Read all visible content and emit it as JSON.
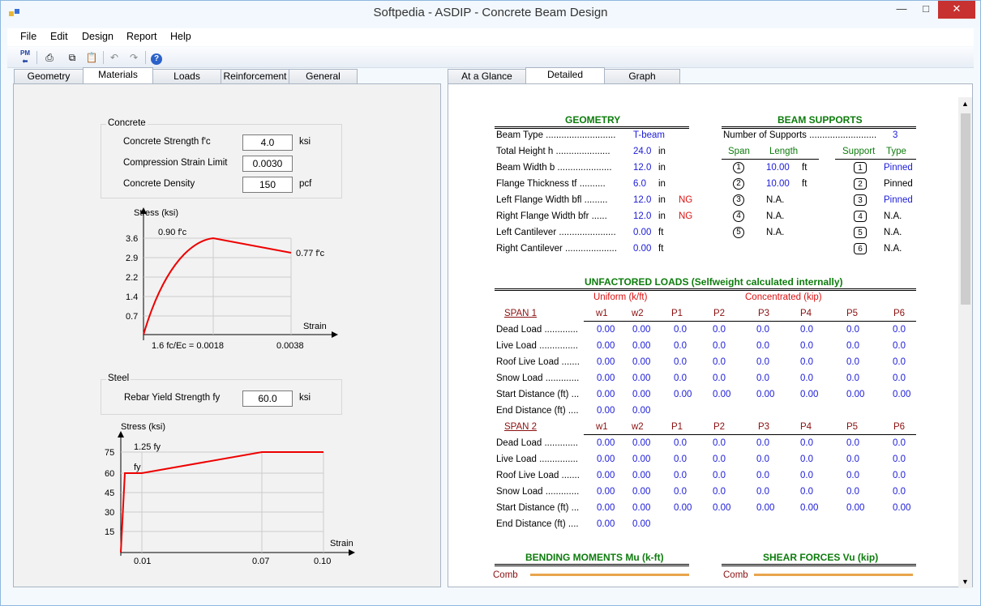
{
  "app": {
    "title": "Softpedia - ASDIP - Concrete Beam Design"
  },
  "menu": [
    "File",
    "Edit",
    "Design",
    "Report",
    "Help"
  ],
  "toolbar": {
    "icons": [
      "pm-back-icon",
      "print-icon",
      "copy-icon",
      "paste-icon",
      "undo-icon",
      "redo-icon",
      "help-icon"
    ],
    "pm_label": "PM"
  },
  "left_tabs": [
    "Geometry",
    "Materials",
    "Loads",
    "Reinforcement",
    "General"
  ],
  "right_tabs": [
    "At a Glance",
    "Detailed",
    "Graph"
  ],
  "concrete": {
    "title": "Concrete",
    "fields": [
      {
        "label": "Concrete Strength  f'c",
        "value": "4.0",
        "unit": "ksi"
      },
      {
        "label": "Compression Strain Limit",
        "value": "0.0030",
        "unit": ""
      },
      {
        "label": "Concrete Density",
        "value": "150",
        "unit": "pcf"
      }
    ],
    "chart": {
      "ylabel": "Stress (ksi)",
      "xlabel": "Strain",
      "yticks": [
        "3.6",
        "2.9",
        "2.2",
        "1.4",
        "0.7"
      ],
      "xlabels": [
        "1.6 fc/Ec =  0.0018",
        "0.0038"
      ],
      "peak_label": "0.90 f'c",
      "end_label": "0.77 f'c"
    }
  },
  "steel": {
    "title": "Steel",
    "field": {
      "label": "Rebar Yield Strength  fy",
      "value": "60.0",
      "unit": "ksi"
    },
    "chart": {
      "ylabel": "Stress (ksi)",
      "xlabel": "Strain",
      "yticks": [
        "75",
        "60",
        "45",
        "30",
        "15"
      ],
      "xticks": [
        "0.01",
        "0.07",
        "0.10"
      ],
      "top_label": "1.25 fy",
      "fy_label": "fy"
    }
  },
  "report": {
    "geometry": {
      "title": "GEOMETRY",
      "rows": [
        {
          "label": "Beam Type  ...........................",
          "value": "T-beam",
          "unit": "",
          "flag": ""
        },
        {
          "label": "Total Height  h  .....................",
          "value": "24.0",
          "unit": "in",
          "flag": ""
        },
        {
          "label": "Beam Width  b  .....................",
          "value": "12.0",
          "unit": "in",
          "flag": ""
        },
        {
          "label": "Flange Thickness  tf  ..........",
          "value": "6.0",
          "unit": "in",
          "flag": ""
        },
        {
          "label": "Left Flange Width  bfl  .........",
          "value": "12.0",
          "unit": "in",
          "flag": "NG"
        },
        {
          "label": "Right Flange Width  bfr  ......",
          "value": "12.0",
          "unit": "in",
          "flag": "NG"
        },
        {
          "label": "Left Cantilever  ......................",
          "value": "0.00",
          "unit": "ft",
          "flag": ""
        },
        {
          "label": "Right Cantilever  ....................",
          "value": "0.00",
          "unit": "ft",
          "flag": ""
        }
      ]
    },
    "supports": {
      "title": "BEAM SUPPORTS",
      "count_label": "Number of Supports  ..........................",
      "count": "3",
      "headers": [
        "Span",
        "Length",
        "Support",
        "Type"
      ],
      "spans": [
        {
          "n": "1",
          "length": "10.00",
          "unit": "ft"
        },
        {
          "n": "2",
          "length": "10.00",
          "unit": "ft"
        },
        {
          "n": "3",
          "length": "N.A.",
          "unit": ""
        },
        {
          "n": "4",
          "length": "N.A.",
          "unit": ""
        },
        {
          "n": "5",
          "length": "N.A.",
          "unit": ""
        }
      ],
      "supports": [
        {
          "n": "1",
          "type": "Pinned"
        },
        {
          "n": "2",
          "type": "Pinned"
        },
        {
          "n": "3",
          "type": "Pinned"
        },
        {
          "n": "4",
          "type": "N.A."
        },
        {
          "n": "5",
          "type": "N.A."
        },
        {
          "n": "6",
          "type": "N.A."
        }
      ]
    },
    "loads": {
      "title": "UNFACTORED LOADS (Selfweight calculated internally)",
      "uniform_label": "Uniform (k/ft)",
      "conc_label": "Concentrated (kip)",
      "columns": [
        "w1",
        "w2",
        "P1",
        "P2",
        "P3",
        "P4",
        "P5",
        "P6"
      ],
      "spans": [
        {
          "name": "SPAN 1",
          "rows": [
            {
              "label": "Dead Load  .............",
              "values": [
                "0.00",
                "0.00",
                "0.0",
                "0.0",
                "0.0",
                "0.0",
                "0.0",
                "0.0"
              ]
            },
            {
              "label": "Live Load  ...............",
              "values": [
                "0.00",
                "0.00",
                "0.0",
                "0.0",
                "0.0",
                "0.0",
                "0.0",
                "0.0"
              ]
            },
            {
              "label": "Roof Live Load  .......",
              "values": [
                "0.00",
                "0.00",
                "0.0",
                "0.0",
                "0.0",
                "0.0",
                "0.0",
                "0.0"
              ]
            },
            {
              "label": "Snow Load  .............",
              "values": [
                "0.00",
                "0.00",
                "0.0",
                "0.0",
                "0.0",
                "0.0",
                "0.0",
                "0.0"
              ]
            },
            {
              "label": "Start Distance (ft)  ...",
              "values": [
                "0.00",
                "0.00",
                "0.00",
                "0.00",
                "0.00",
                "0.00",
                "0.00",
                "0.00"
              ]
            },
            {
              "label": "End Distance (ft)  ....",
              "values": [
                "0.00",
                "0.00"
              ]
            }
          ]
        },
        {
          "name": "SPAN 2",
          "rows": [
            {
              "label": "Dead Load  .............",
              "values": [
                "0.00",
                "0.00",
                "0.0",
                "0.0",
                "0.0",
                "0.0",
                "0.0",
                "0.0"
              ]
            },
            {
              "label": "Live Load  ...............",
              "values": [
                "0.00",
                "0.00",
                "0.0",
                "0.0",
                "0.0",
                "0.0",
                "0.0",
                "0.0"
              ]
            },
            {
              "label": "Roof Live Load  .......",
              "values": [
                "0.00",
                "0.00",
                "0.0",
                "0.0",
                "0.0",
                "0.0",
                "0.0",
                "0.0"
              ]
            },
            {
              "label": "Snow Load  .............",
              "values": [
                "0.00",
                "0.00",
                "0.0",
                "0.0",
                "0.0",
                "0.0",
                "0.0",
                "0.0"
              ]
            },
            {
              "label": "Start Distance (ft)  ...",
              "values": [
                "0.00",
                "0.00",
                "0.00",
                "0.00",
                "0.00",
                "0.00",
                "0.00",
                "0.00"
              ]
            },
            {
              "label": "End Distance (ft)  ....",
              "values": [
                "0.00",
                "0.00"
              ]
            }
          ]
        }
      ]
    },
    "moments": {
      "title": "BENDING MOMENTS Mu (k-ft)",
      "comb_label": "Comb"
    },
    "shear": {
      "title": "SHEAR FORCES Vu (kip)",
      "comb_label": "Comb"
    }
  }
}
